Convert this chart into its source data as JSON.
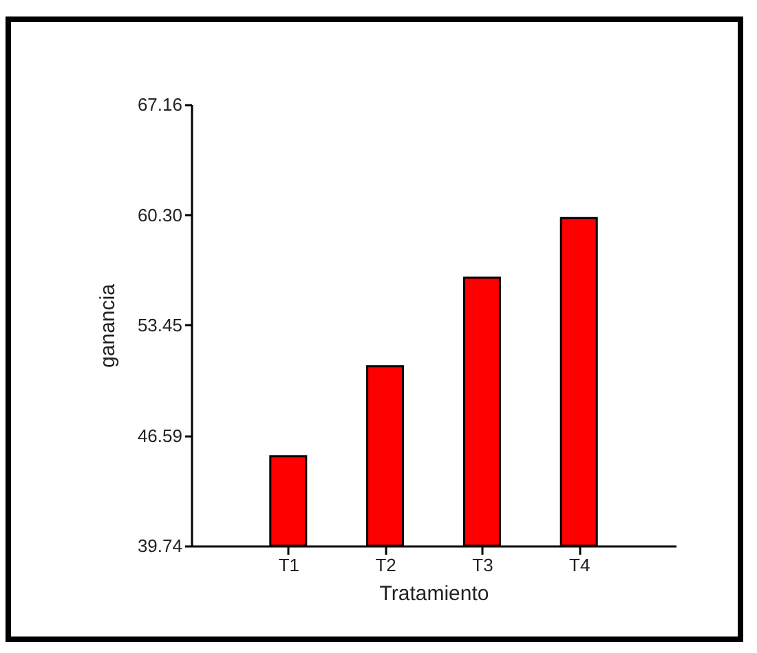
{
  "chart_data": {
    "type": "bar",
    "xlabel": "Tratamiento",
    "ylabel": "ganancia",
    "categories": [
      "T1",
      "T2",
      "T3",
      "T4"
    ],
    "values": [
      45.3,
      50.9,
      56.4,
      60.1
    ],
    "color": "#ff0000",
    "ylim": [
      39.74,
      67.16
    ],
    "yticks": [
      39.74,
      46.59,
      53.45,
      {
        "value": 60.3,
        "label": "60.30"
      },
      67.16
    ],
    "grid": false
  }
}
